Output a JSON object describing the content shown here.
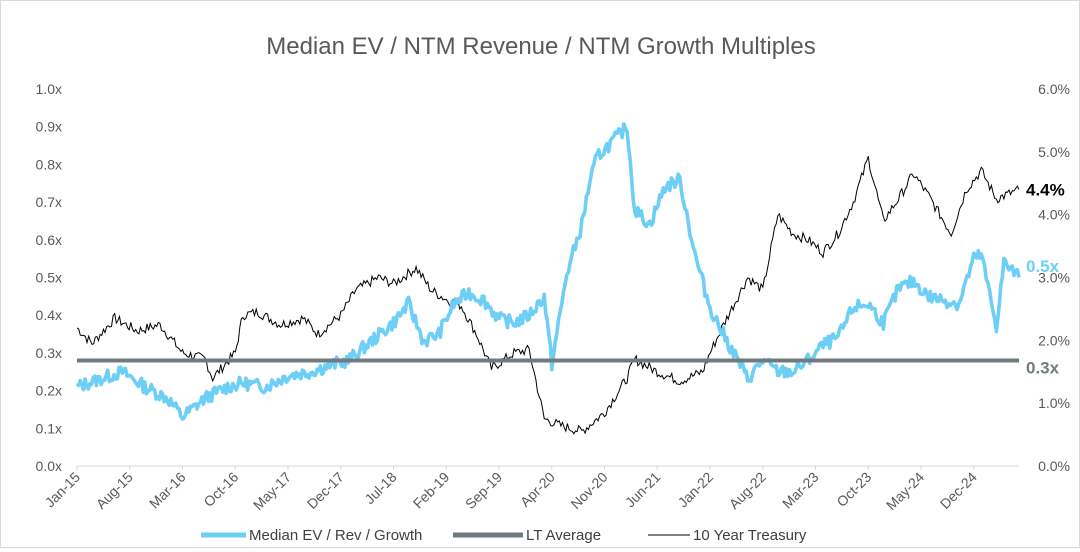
{
  "chart_data": {
    "type": "line",
    "title": "Median EV / NTM Revenue / NTM Growth Multiples",
    "xlabel": "",
    "ylabel": "",
    "y_left_ticks": [
      "0.0x",
      "0.1x",
      "0.2x",
      "0.3x",
      "0.4x",
      "0.5x",
      "0.6x",
      "0.7x",
      "0.8x",
      "0.9x",
      "1.0x"
    ],
    "y_right_ticks": [
      "0.0%",
      "1.0%",
      "2.0%",
      "3.0%",
      "4.0%",
      "5.0%",
      "6.0%"
    ],
    "ylim_left": [
      0,
      1.0
    ],
    "ylim_right": [
      0,
      6.0
    ],
    "x_ticks": [
      "Jan-15",
      "Aug-15",
      "Mar-16",
      "Oct-16",
      "May-17",
      "Dec-17",
      "Jul-18",
      "Feb-19",
      "Sep-19",
      "Apr-20",
      "Nov-20",
      "Jun-21",
      "Jan-22",
      "Aug-22",
      "Mar-23",
      "Oct-23",
      "May-24",
      "Dec-24"
    ],
    "x_range": [
      "2015-01",
      "2025-06"
    ],
    "grid": false,
    "legend_position": "bottom",
    "colors": {
      "multiple": "#6DCFF6",
      "lt_average": "#707b80",
      "treasury": "#000000",
      "axis": "#d9d9d9"
    },
    "series": [
      {
        "name": "Median EV / Rev / Growth",
        "axis": "left",
        "x": [
          "2015-01",
          "2015-04",
          "2015-07",
          "2015-10",
          "2016-01",
          "2016-03",
          "2016-06",
          "2016-09",
          "2016-11",
          "2017-02",
          "2017-05",
          "2017-08",
          "2017-11",
          "2018-01",
          "2018-04",
          "2018-07",
          "2018-09",
          "2018-11",
          "2019-01",
          "2019-03",
          "2019-05",
          "2019-07",
          "2019-09",
          "2019-11",
          "2020-01",
          "2020-03",
          "2020-04",
          "2020-06",
          "2020-08",
          "2020-09",
          "2020-10",
          "2020-12",
          "2021-02",
          "2021-03",
          "2021-05",
          "2021-07",
          "2021-09",
          "2021-11",
          "2022-01",
          "2022-03",
          "2022-05",
          "2022-06",
          "2022-08",
          "2022-10",
          "2022-12",
          "2023-02",
          "2023-04",
          "2023-06",
          "2023-08",
          "2023-10",
          "2023-12",
          "2024-02",
          "2024-04",
          "2024-06",
          "2024-08",
          "2024-10",
          "2024-12",
          "2025-01",
          "2025-03",
          "2025-04",
          "2025-06"
        ],
        "values": [
          0.21,
          0.23,
          0.25,
          0.21,
          0.18,
          0.13,
          0.18,
          0.21,
          0.22,
          0.21,
          0.24,
          0.25,
          0.27,
          0.28,
          0.33,
          0.38,
          0.43,
          0.33,
          0.35,
          0.43,
          0.46,
          0.44,
          0.39,
          0.38,
          0.4,
          0.45,
          0.27,
          0.51,
          0.64,
          0.75,
          0.82,
          0.86,
          0.9,
          0.68,
          0.64,
          0.74,
          0.76,
          0.56,
          0.42,
          0.34,
          0.27,
          0.23,
          0.28,
          0.25,
          0.25,
          0.28,
          0.32,
          0.34,
          0.42,
          0.43,
          0.38,
          0.47,
          0.49,
          0.45,
          0.44,
          0.43,
          0.55,
          0.56,
          0.37,
          0.54,
          0.5
        ]
      },
      {
        "name": "LT Average",
        "axis": "left",
        "x": [
          "2015-01",
          "2025-06"
        ],
        "values": [
          0.28,
          0.28
        ]
      },
      {
        "name": "10 Year Treasury",
        "axis": "right",
        "x": [
          "2015-01",
          "2015-03",
          "2015-06",
          "2015-09",
          "2015-12",
          "2016-03",
          "2016-06",
          "2016-07",
          "2016-10",
          "2016-11",
          "2017-01",
          "2017-04",
          "2017-07",
          "2017-09",
          "2017-12",
          "2018-02",
          "2018-05",
          "2018-07",
          "2018-10",
          "2018-12",
          "2019-02",
          "2019-04",
          "2019-06",
          "2019-08",
          "2019-11",
          "2020-01",
          "2020-03",
          "2020-05",
          "2020-08",
          "2020-11",
          "2021-02",
          "2021-03",
          "2021-06",
          "2021-09",
          "2021-12",
          "2022-01",
          "2022-03",
          "2022-06",
          "2022-08",
          "2022-10",
          "2022-12",
          "2023-02",
          "2023-04",
          "2023-06",
          "2023-08",
          "2023-10",
          "2023-12",
          "2024-02",
          "2024-04",
          "2024-06",
          "2024-09",
          "2024-11",
          "2025-01",
          "2025-03",
          "2025-04",
          "2025-06"
        ],
        "values": [
          2.2,
          1.95,
          2.35,
          2.15,
          2.25,
          1.8,
          1.7,
          1.4,
          1.8,
          2.4,
          2.45,
          2.25,
          2.35,
          2.1,
          2.4,
          2.8,
          3.0,
          2.9,
          3.15,
          2.8,
          2.65,
          2.55,
          2.1,
          1.55,
          1.8,
          1.85,
          0.75,
          0.65,
          0.55,
          0.85,
          1.4,
          1.7,
          1.5,
          1.35,
          1.5,
          1.8,
          2.3,
          3.0,
          2.8,
          4.0,
          3.7,
          3.6,
          3.4,
          3.7,
          4.2,
          4.9,
          3.9,
          4.25,
          4.65,
          4.3,
          3.7,
          4.4,
          4.7,
          4.25,
          4.3,
          4.4
        ]
      }
    ],
    "end_labels": {
      "treasury": "4.4%",
      "multiple": "0.5x",
      "lt_average": "0.3x"
    }
  }
}
